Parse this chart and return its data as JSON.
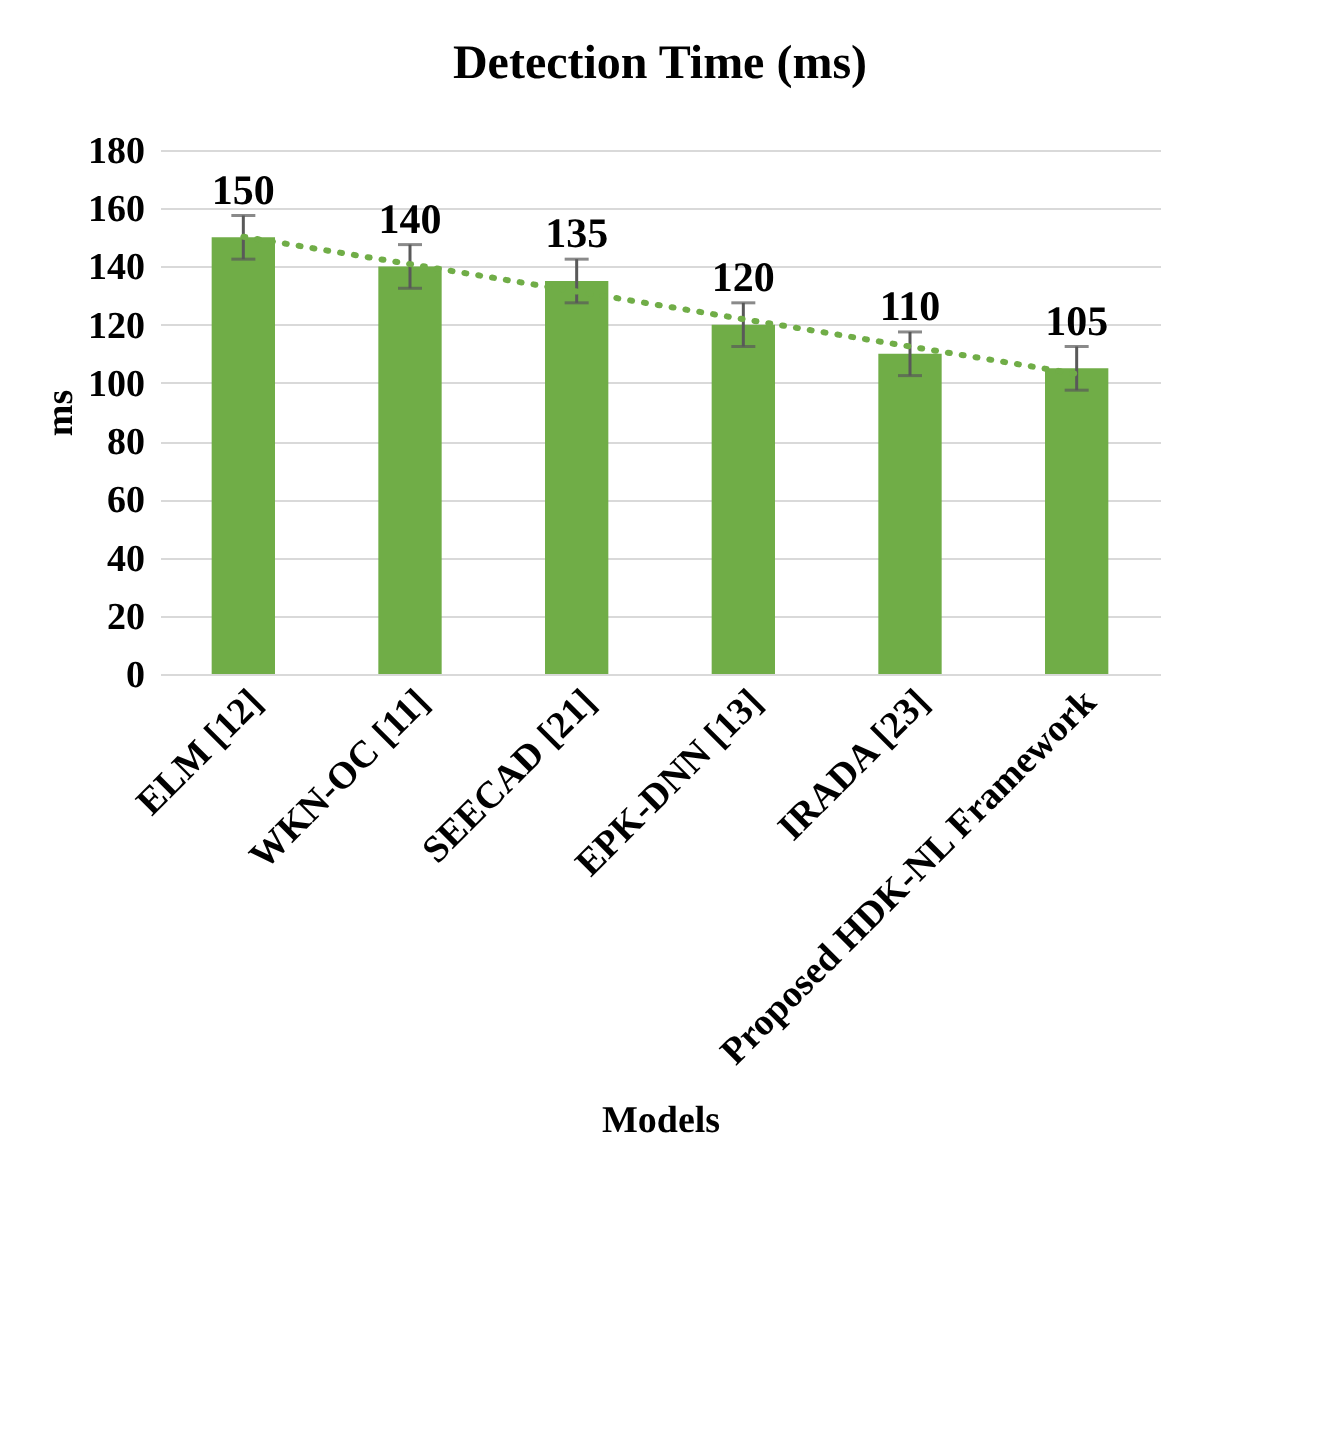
{
  "chart_data": {
    "type": "bar",
    "title": "Detection Time (ms)",
    "xlabel": "Models",
    "ylabel": "ms",
    "categories": [
      "ELM [12]",
      "WKN-OC [11]",
      "SEECAD [21]",
      "EPK-DNN [13]",
      "IRADA [23]",
      "Proposed HDK-NL Framework"
    ],
    "series": [
      {
        "color": "#70ad47",
        "values": [
          150,
          140,
          135,
          120,
          110,
          105
        ],
        "value_labels": [
          "150",
          "140",
          "135",
          "120",
          "110",
          "105"
        ],
        "errors": [
          7.5,
          7.5,
          7.5,
          7.5,
          7.5,
          7.5
        ]
      },
      {
        "type": "line",
        "color": "#70ad47",
        "line_style": "dotted",
        "marker": "none",
        "values": [
          150.2,
          140.8,
          131.4,
          121.9,
          112.5,
          103.1
        ]
      }
    ],
    "ylim": [
      0,
      180
    ],
    "yticks": [
      0,
      20,
      40,
      60,
      80,
      100,
      120,
      140,
      160,
      180
    ],
    "grid": "y"
  }
}
